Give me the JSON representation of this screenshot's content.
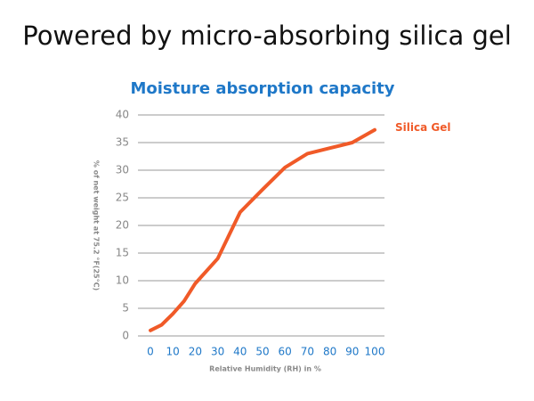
{
  "chart_data": {
    "type": "line",
    "heading": "Powered by micro-absorbing silica gel",
    "title": "Moisture absorption capacity",
    "xlabel": "Relative Humidity (RH) in %",
    "ylabel": "% of net weight at 75.2 °F(25°C)",
    "x": [
      0,
      5,
      10,
      15,
      20,
      30,
      40,
      50,
      60,
      70,
      80,
      90,
      100
    ],
    "series": [
      {
        "name": "Silica Gel",
        "color": "#f05a28",
        "values": [
          1,
          2,
          4,
          6.3,
          9.5,
          14,
          22.4,
          26.5,
          30.5,
          33,
          34,
          35,
          37.3
        ]
      }
    ],
    "xlim": [
      0,
      100
    ],
    "xticks": [
      0,
      10,
      20,
      30,
      40,
      50,
      60,
      70,
      80,
      90,
      100
    ],
    "ylim": [
      0,
      40
    ],
    "yticks": [
      0,
      5,
      10,
      15,
      20,
      25,
      30,
      35,
      40
    ],
    "grid": true
  }
}
